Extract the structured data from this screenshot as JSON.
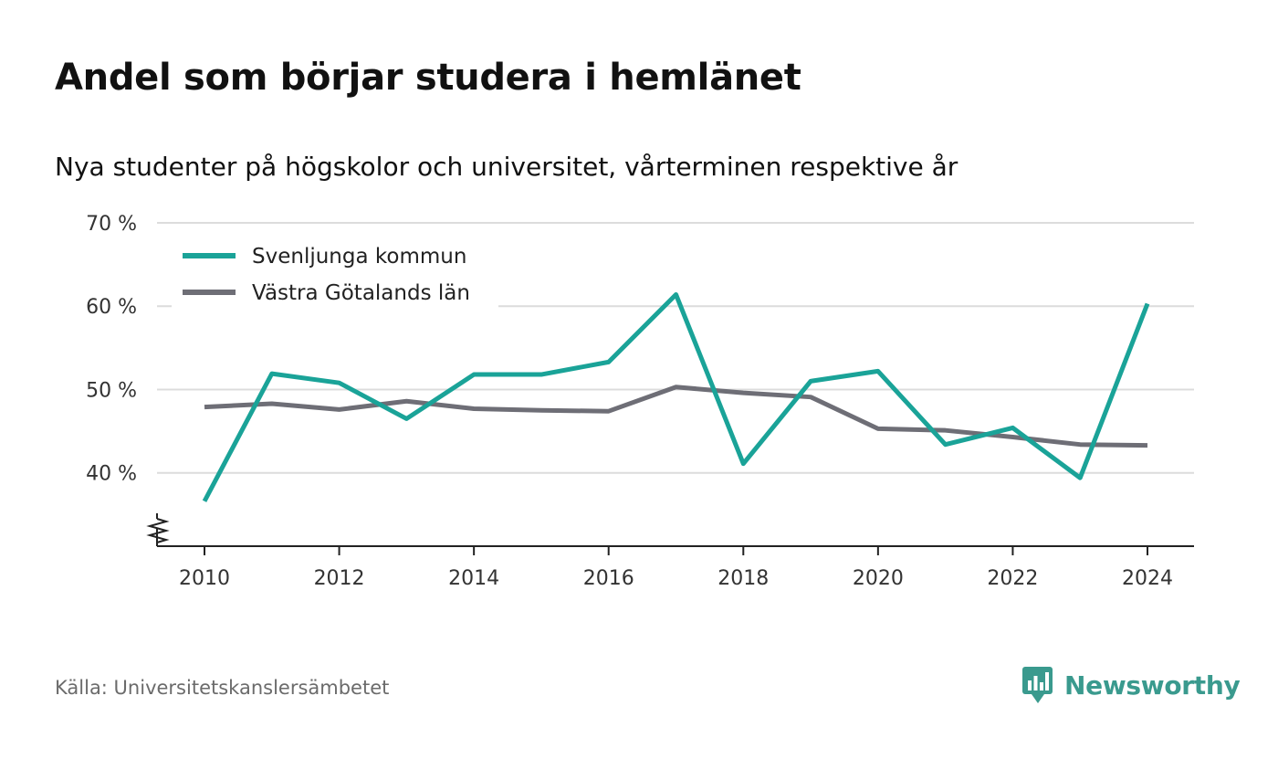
{
  "title": "Andel som börjar studera i hemlänet",
  "subtitle": "Nya studenter på högskolor och universitet, vårterminen respektive år",
  "source": "Källa: Universitetskanslersämbetet",
  "brand": {
    "name": "Newsworthy",
    "icon": "newsworthy-logo-icon",
    "color": "#3a9a8e"
  },
  "chart_data": {
    "type": "line",
    "x": [
      2010,
      2011,
      2012,
      2013,
      2014,
      2015,
      2016,
      2017,
      2018,
      2019,
      2020,
      2021,
      2022,
      2023,
      2024
    ],
    "series": [
      {
        "name": "Svenljunga kommun",
        "color": "#1aa398",
        "values": [
          36.6,
          51.9,
          50.8,
          46.5,
          51.8,
          51.8,
          53.3,
          61.4,
          41.1,
          51.0,
          52.2,
          43.4,
          45.4,
          39.4,
          60.3
        ]
      },
      {
        "name": "Västra Götalands län",
        "color": "#6e6e76",
        "values": [
          47.9,
          48.3,
          47.6,
          48.6,
          47.7,
          47.5,
          47.4,
          50.3,
          49.6,
          49.1,
          45.3,
          45.1,
          44.3,
          43.4,
          43.3
        ]
      }
    ],
    "yticks": [
      40,
      50,
      60,
      70
    ],
    "ytick_labels": [
      "40 %",
      "50 %",
      "60 %",
      "70 %"
    ],
    "xticks": [
      2010,
      2012,
      2014,
      2016,
      2018,
      2020,
      2022,
      2024
    ],
    "xtick_labels": [
      "2010",
      "2012",
      "2014",
      "2016",
      "2018",
      "2020",
      "2022",
      "2024"
    ],
    "ylim": [
      31.2,
      70
    ],
    "xlim": [
      2009.3,
      2024.7
    ],
    "y_axis_break": true,
    "grid": true,
    "legend_position": "top-left"
  }
}
